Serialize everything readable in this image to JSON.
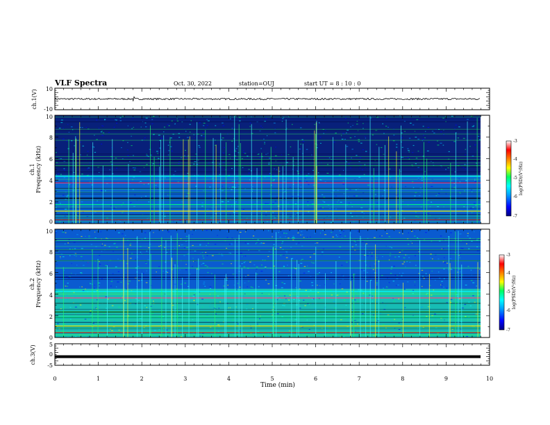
{
  "header": {
    "title": "VLF Spectra",
    "date": "Oct. 30, 2022",
    "station": "station=OUJ",
    "start": "start UT = 8 : 10 : 0"
  },
  "chart_data": [
    {
      "type": "line",
      "ylabel": "ch.1(V)",
      "ylim": [
        -10,
        10
      ],
      "y_ticks": [
        "10",
        "-10"
      ],
      "series": [
        {
          "values_summary": "noise around 0 V, amplitude about ±1 V with a spike near 1.8 min"
        }
      ]
    },
    {
      "type": "heatmap",
      "ylabel_line1": "ch.1",
      "ylabel_line2": "Frequency (kHz)",
      "ylim": [
        0,
        10
      ],
      "y_ticks": [
        "0",
        "2",
        "4",
        "6",
        "8",
        "10"
      ],
      "colorbar": {
        "label": "log(PSD)(V²/Hz)",
        "range": [
          -7,
          -3
        ],
        "ticks": [
          "-3",
          "-4",
          "-5",
          "-6",
          "-7"
        ]
      },
      "strong_bands_khz": [
        0.4,
        1.2,
        1.8,
        2.4,
        3.8,
        4.4,
        5.3
      ]
    },
    {
      "type": "heatmap",
      "ylabel_line1": "ch.2",
      "ylabel_line2": "Frequency (kHz)",
      "ylim": [
        0,
        10
      ],
      "y_ticks": [
        "0",
        "2",
        "4",
        "6",
        "8",
        "10"
      ],
      "colorbar": {
        "label": "log(PSD)(V²/Hz)",
        "range": [
          -7,
          -3
        ],
        "ticks": [
          "-3",
          "-4",
          "-5",
          "-6",
          "-7"
        ]
      },
      "strong_bands_khz": [
        0.5,
        1.1,
        1.9,
        2.4,
        3.7,
        4.3,
        5.6
      ]
    },
    {
      "type": "line",
      "ylabel": "ch.3(V)",
      "ylim": [
        -5,
        5
      ],
      "y_ticks": [
        "5",
        "0",
        "-5"
      ],
      "series": [
        {
          "values_summary": "constant at about -1 V"
        }
      ],
      "xlabel": "Time (min)",
      "xlim": [
        0,
        10
      ],
      "x_ticks": [
        "0",
        "1",
        "2",
        "3",
        "4",
        "5",
        "6",
        "7",
        "8",
        "9",
        "10"
      ]
    }
  ],
  "colors": {
    "colormap": [
      "#000080",
      "#0000ff",
      "#00a0ff",
      "#00ffff",
      "#00ff60",
      "#ffff00",
      "#ff8000",
      "#ff0000",
      "#ffffff"
    ],
    "ch1_background": "#08207a",
    "ch2_background": "#0a5bd0"
  }
}
